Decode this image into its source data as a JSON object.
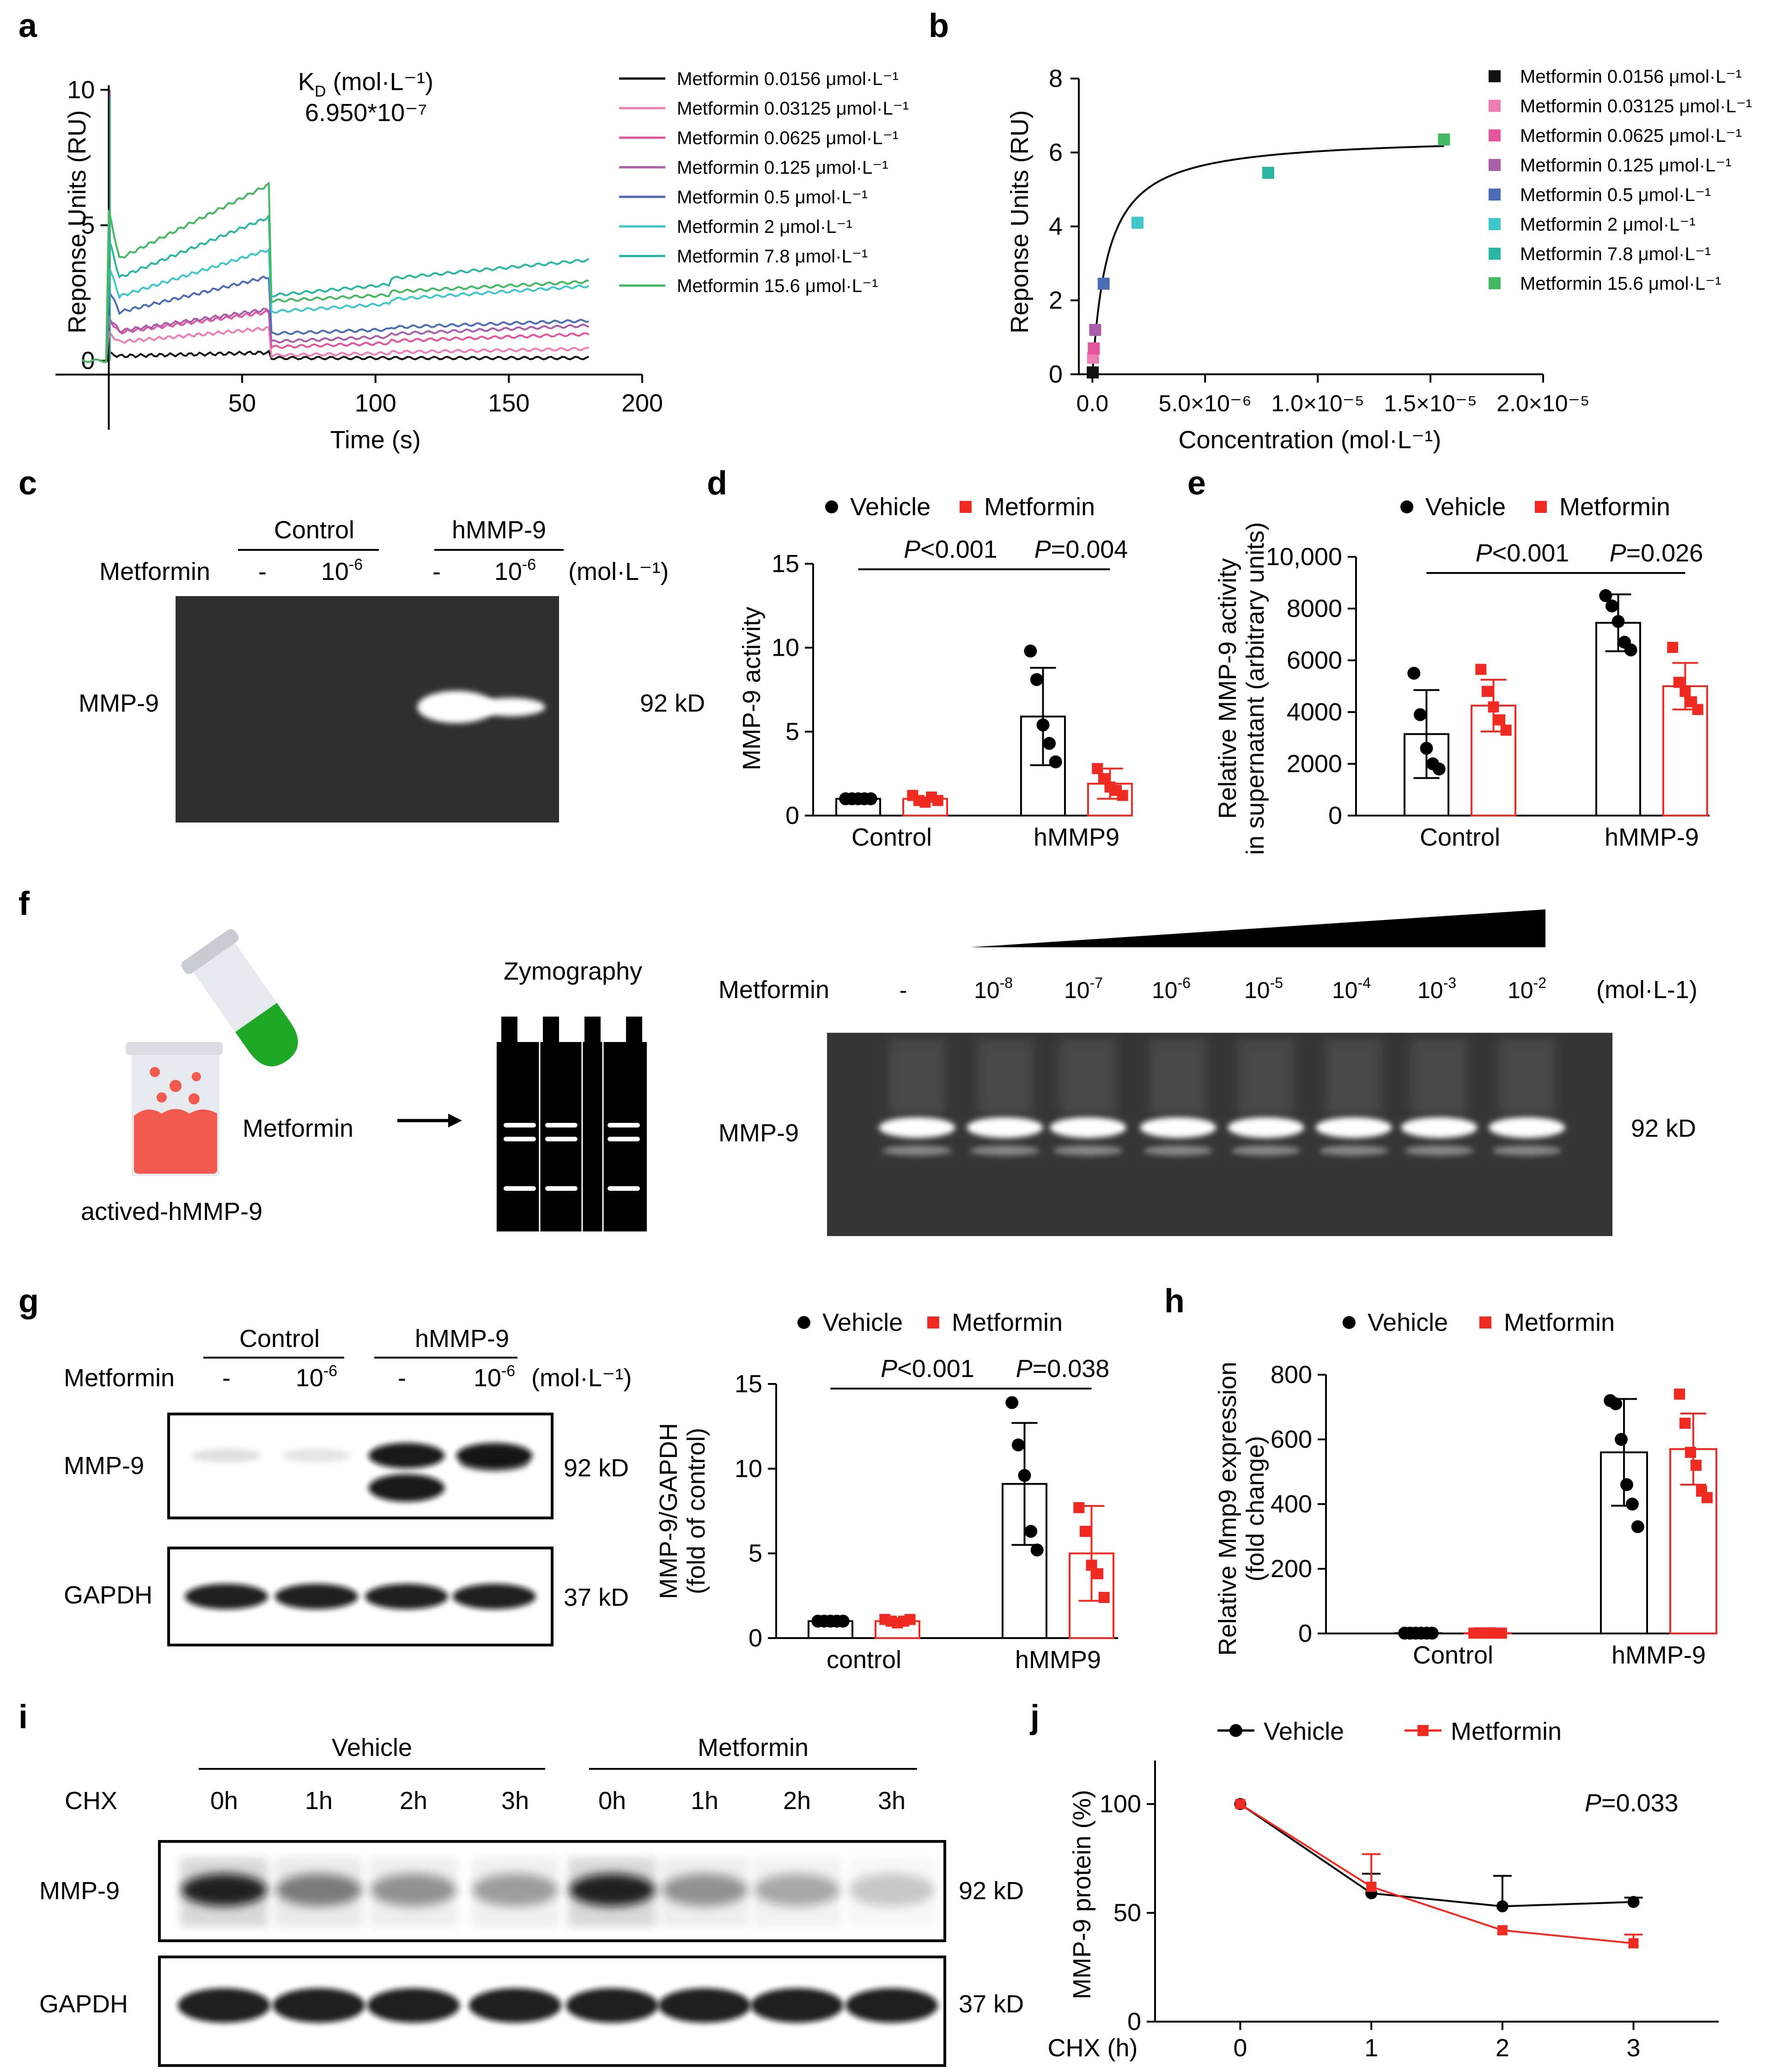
{
  "figure": {
    "panel_labels": [
      "a",
      "b",
      "c",
      "d",
      "e",
      "f",
      "g",
      "h",
      "i",
      "j"
    ],
    "colors": {
      "black": "#000000",
      "red": "#ef2b22",
      "bg": "#ffffff",
      "gel": "#2f2f2f",
      "conc_0156": "#111111",
      "conc_03125": "#ee7fb5",
      "conc_0625": "#e2559f",
      "conc_125": "#a85ea8",
      "conc_05": "#4c6cb6",
      "conc_2": "#3fc7cc",
      "conc_78": "#2bb6a3",
      "conc_156": "#45b864"
    }
  },
  "panel_a": {
    "kd_label_main": "K",
    "kd_label_sub": "D",
    "kd_label_unit": " (mol·L⁻¹)",
    "kd_value": "6.950*10⁻⁷",
    "legend": [
      "Metformin 0.0156 μmol·L⁻¹",
      "Metformin 0.03125 μmol·L⁻¹",
      "Metformin 0.0625 μmol·L⁻¹",
      "Metformin 0.125 μmol·L⁻¹",
      "Metformin 0.5 μmol·L⁻¹",
      "Metformin 2 μmol·L⁻¹",
      "Metformin 7.8 μmol·L⁻¹",
      "Metformin 15.6 μmol·L⁻¹"
    ],
    "legend_colors": [
      "#111111",
      "#ee7fb5",
      "#e2559f",
      "#a85ea8",
      "#4c6cb6",
      "#3fc7cc",
      "#2bb6a3",
      "#45b864"
    ]
  },
  "chart_data": [
    {
      "id": "a",
      "type": "line",
      "title": "",
      "xlabel": "Time (s)",
      "ylabel": "Reponse Units (RU)",
      "xlim": [
        -20,
        200
      ],
      "ylim": [
        -0.5,
        10.5
      ],
      "xticks": [
        50,
        100,
        150,
        200
      ],
      "yticks": [
        0,
        5,
        10
      ],
      "series": [
        {
          "name": "Metformin 0.0156 μmol·L⁻¹",
          "end_association": 0.3,
          "plateau": 0.1,
          "final": 0.1
        },
        {
          "name": "Metformin 0.03125 μmol·L⁻¹",
          "end_association": 1.2,
          "plateau": 0.2,
          "final": 0.4
        },
        {
          "name": "Metformin 0.0625 μmol·L⁻¹",
          "end_association": 1.8,
          "plateau": 0.5,
          "final": 0.9
        },
        {
          "name": "Metformin 0.125 μmol·L⁻¹",
          "end_association": 1.9,
          "plateau": 0.7,
          "final": 1.2
        },
        {
          "name": "Metformin 0.5 μmol·L⁻¹",
          "end_association": 3.1,
          "plateau": 1.0,
          "final": 1.4
        },
        {
          "name": "Metformin 2 μmol·L⁻¹",
          "end_association": 4.1,
          "plateau": 1.8,
          "final": 2.6
        },
        {
          "name": "Metformin 7.8 μmol·L⁻¹",
          "end_association": 5.3,
          "plateau": 2.4,
          "final": 3.5
        },
        {
          "name": "Metformin 15.6 μmol·L⁻¹",
          "end_association": 6.5,
          "plateau": 2.2,
          "final": 2.8
        }
      ]
    },
    {
      "id": "b",
      "type": "scatter",
      "xlabel": "Concentration (mol·L⁻¹)",
      "ylabel": "Reponse Units (RU)",
      "xlim": [
        -5e-07,
        2e-05
      ],
      "ylim": [
        0,
        8
      ],
      "xtick_labels": [
        "0.0",
        "5.0×10⁻⁶",
        "1.0×10⁻⁵",
        "1.5×10⁻⁵",
        "2.0×10⁻⁵"
      ],
      "xtick_values": [
        0,
        5e-06,
        1e-05,
        1.5e-05,
        2e-05
      ],
      "yticks": [
        0,
        2,
        4,
        6,
        8
      ],
      "fit": {
        "type": "langmuir",
        "rmax": 6.45,
        "kd": 6.95e-07
      },
      "points": [
        {
          "x": 1.56e-08,
          "y": 0.05,
          "series": "Metformin 0.0156 μmol·L⁻¹"
        },
        {
          "x": 3.125e-08,
          "y": 0.45,
          "series": "Metformin 0.03125 μmol·L⁻¹"
        },
        {
          "x": 6.25e-08,
          "y": 0.7,
          "series": "Metformin 0.0625 μmol·L⁻¹"
        },
        {
          "x": 1.25e-07,
          "y": 1.2,
          "series": "Metformin 0.125 μmol·L⁻¹"
        },
        {
          "x": 5e-07,
          "y": 2.45,
          "series": "Metformin 0.5 μmol·L⁻¹"
        },
        {
          "x": 2e-06,
          "y": 4.1,
          "series": "Metformin 2 μmol·L⁻¹"
        },
        {
          "x": 7.8e-06,
          "y": 5.45,
          "series": "Metformin 7.8 μmol·L⁻¹"
        },
        {
          "x": 1.56e-05,
          "y": 6.35,
          "series": "Metformin 15.6 μmol·L⁻¹"
        }
      ],
      "legend": [
        "Metformin 0.0156 μmol·L⁻¹",
        "Metformin 0.03125 μmol·L⁻¹",
        "Metformin 0.0625 μmol·L⁻¹",
        "Metformin 0.125 μmol·L⁻¹",
        "Metformin 0.5 μmol·L⁻¹",
        "Metformin 2 μmol·L⁻¹",
        "Metformin 7.8 μmol·L⁻¹",
        "Metformin 15.6 μmol·L⁻¹"
      ],
      "legend_colors": [
        "#111111",
        "#ee7fb5",
        "#e2559f",
        "#a85ea8",
        "#4c6cb6",
        "#3fc7cc",
        "#2bb6a3",
        "#45b864"
      ]
    },
    {
      "id": "d",
      "type": "bar",
      "ylabel": "MMP-9 activity",
      "categories": [
        "Control",
        "hMMP9"
      ],
      "ylim": [
        0,
        15
      ],
      "yticks": [
        0,
        5,
        10,
        15
      ],
      "legend": [
        "Vehicle",
        "Metformin"
      ],
      "series": [
        {
          "name": "Vehicle",
          "values": [
            1.0,
            5.9
          ],
          "sd": [
            0.0,
            2.9
          ],
          "points": [
            [
              1,
              1,
              1,
              1,
              1
            ],
            [
              9.8,
              8.1,
              5.4,
              4.3,
              3.2
            ]
          ]
        },
        {
          "name": "Metformin",
          "values": [
            1.0,
            1.9
          ],
          "sd": [
            0.15,
            0.9
          ],
          "points": [
            [
              1.2,
              0.9,
              0.8,
              1.1,
              0.9
            ],
            [
              2.8,
              2.2,
              1.7,
              1.5,
              1.2
            ]
          ]
        }
      ],
      "stats": [
        {
          "label": "P<0.001",
          "italic": "P",
          "rest": "<0.001",
          "from": "Control-Vehicle",
          "to": "hMMP9-Vehicle"
        },
        {
          "label": "P=0.004",
          "italic": "P",
          "rest": "=0.004",
          "from": "hMMP9-Vehicle",
          "to": "hMMP9-Metformin"
        }
      ]
    },
    {
      "id": "e",
      "type": "bar",
      "ylabel": "Relative MMP-9 activity in supernatant (arbitrary units)",
      "ylabel_line1": "Relative MMP-9 activity",
      "ylabel_line2": "in supernatant (arbitrary units)",
      "categories": [
        "Control",
        "hMMP-9"
      ],
      "ylim": [
        0,
        10000
      ],
      "yticks": [
        0,
        2000,
        4000,
        6000,
        8000
      ],
      "ytick_labels": [
        "0",
        "2000",
        "4000",
        "6000",
        "8000",
        "10,000"
      ],
      "legend": [
        "Vehicle",
        "Metformin"
      ],
      "series": [
        {
          "name": "Vehicle",
          "values": [
            3150,
            7450
          ],
          "sd": [
            1700,
            1100
          ],
          "points": [
            [
              5500,
              3900,
              2600,
              2000,
              1800
            ],
            [
              8500,
              8100,
              7500,
              6700,
              6400
            ]
          ]
        },
        {
          "name": "Metformin",
          "values": [
            4250,
            5000
          ],
          "sd": [
            1000,
            900
          ],
          "points": [
            [
              5650,
              4800,
              4200,
              3700,
              3300
            ],
            [
              6500,
              5150,
              4800,
              4400,
              4100
            ]
          ]
        }
      ],
      "stats": [
        {
          "label": "P<0.001",
          "italic": "P",
          "rest": "<0.001"
        },
        {
          "label": "P=0.026",
          "italic": "P",
          "rest": "=0.026"
        }
      ]
    },
    {
      "id": "g",
      "type": "bar",
      "ylabel_line1": "MMP-9/GAPDH",
      "ylabel_line2": "(fold of control)",
      "categories": [
        "control",
        "hMMP9"
      ],
      "ylim": [
        0,
        15
      ],
      "yticks": [
        0,
        5,
        10,
        15
      ],
      "legend": [
        "Vehicle",
        "Metformin"
      ],
      "series": [
        {
          "name": "Vehicle",
          "values": [
            1.0,
            9.1
          ],
          "sd": [
            0.05,
            3.6
          ],
          "points": [
            [
              1,
              1,
              1,
              1,
              1
            ],
            [
              13.9,
              11.4,
              9.6,
              6.3,
              5.2
            ]
          ]
        },
        {
          "name": "Metformin",
          "values": [
            1.0,
            5.0
          ],
          "sd": [
            0.1,
            2.8
          ],
          "points": [
            [
              1.1,
              1,
              0.9,
              1,
              1.1
            ],
            [
              7.7,
              6.3,
              4.3,
              3.8,
              2.4
            ]
          ]
        }
      ],
      "stats": [
        {
          "label": "P<0.001",
          "italic": "P",
          "rest": "<0.001"
        },
        {
          "label": "P=0.038",
          "italic": "P",
          "rest": "=0.038"
        }
      ]
    },
    {
      "id": "h",
      "type": "bar",
      "ylabel_line1": "Relative Mmp9 expression",
      "ylabel_line2": "(fold change)",
      "categories": [
        "Control",
        "hMMP-9"
      ],
      "ylim": [
        0,
        800
      ],
      "yticks": [
        0,
        200,
        400,
        600,
        800
      ],
      "legend": [
        "Vehicle",
        "Metformin"
      ],
      "series": [
        {
          "name": "Vehicle",
          "values": [
            1,
            560
          ],
          "sd": [
            1,
            165
          ],
          "points": [
            [
              1,
              1,
              1,
              1,
              1,
              1
            ],
            [
              720,
              710,
              600,
              460,
              400,
              330
            ]
          ]
        },
        {
          "name": "Metformin",
          "values": [
            1,
            570
          ],
          "sd": [
            1,
            110
          ],
          "points": [
            [
              1,
              2,
              1,
              2,
              1,
              1
            ],
            [
              740,
              650,
              560,
              520,
              440,
              420
            ]
          ]
        }
      ]
    },
    {
      "id": "j",
      "type": "line",
      "xlabel": "CHX (h)",
      "ylabel": "MMP-9 protein (%)",
      "x": [
        0,
        1,
        2,
        3
      ],
      "xlim": [
        -0.65,
        3.65
      ],
      "ylim": [
        0,
        120
      ],
      "yticks": [
        0,
        50,
        100
      ],
      "legend": [
        "Vehicle",
        "Metformin"
      ],
      "annotation": {
        "italic": "P",
        "rest": "=0.033"
      },
      "series": [
        {
          "name": "Vehicle",
          "values": [
            100,
            59,
            53,
            55
          ],
          "err": [
            0,
            9,
            14,
            2
          ]
        },
        {
          "name": "Metformin",
          "values": [
            100,
            62,
            42,
            36
          ],
          "err": [
            0,
            15,
            0,
            4
          ]
        }
      ]
    }
  ],
  "panel_c": {
    "group_control": "Control",
    "group_hmmp9": "hMMP-9",
    "row_label": "Metformin",
    "lanes": [
      "-",
      "10",
      "-",
      "10"
    ],
    "lane_exp": [
      "",
      "-6",
      "",
      "-6"
    ],
    "unit": "(mol·L⁻¹)",
    "band_label": "MMP-9",
    "band_size": "92 kD",
    "band_intensity": [
      0,
      0,
      1.0,
      0.55
    ]
  },
  "panel_f": {
    "left_label": "actived-hMMP-9",
    "metformin_label": "Metformin",
    "zymography_label": "Zymography",
    "row_label": "Metformin",
    "lanes": [
      "-",
      "10",
      "10",
      "10",
      "10",
      "10",
      "10",
      "10"
    ],
    "lane_exp": [
      "",
      "-8",
      "-7",
      "-6",
      "-5",
      "-4",
      "-3",
      "-2"
    ],
    "unit": "(mol·L-1)",
    "band_label": "MMP-9",
    "band_size": "92 kD"
  },
  "panel_g": {
    "group_control": "Control",
    "group_hmmp9": "hMMP-9",
    "row_label": "Metformin",
    "lanes": [
      "-",
      "10",
      "-",
      "10"
    ],
    "lane_exp": [
      "",
      "-6",
      "",
      "-6"
    ],
    "unit": "(mol·L⁻¹)",
    "bands": [
      {
        "label": "MMP-9",
        "size": "92 kD",
        "intensity": [
          0.15,
          0.12,
          1.0,
          0.6
        ]
      },
      {
        "label": "GAPDH",
        "size": "37 kD",
        "intensity": [
          1.0,
          1.0,
          1.0,
          1.0
        ]
      }
    ]
  },
  "panel_i": {
    "group_vehicle": "Vehicle",
    "group_metformin": "Metformin",
    "row_label": "CHX",
    "lanes": [
      "0h",
      "1h",
      "2h",
      "3h",
      "0h",
      "1h",
      "2h",
      "3h"
    ],
    "bands": [
      {
        "label": "MMP-9",
        "size": "92 kD",
        "intensity": [
          1.0,
          0.55,
          0.45,
          0.4,
          1.0,
          0.45,
          0.35,
          0.22
        ]
      },
      {
        "label": "GAPDH",
        "size": "37 kD",
        "intensity": [
          1,
          1,
          1,
          1,
          1,
          1,
          1,
          1
        ]
      }
    ]
  }
}
